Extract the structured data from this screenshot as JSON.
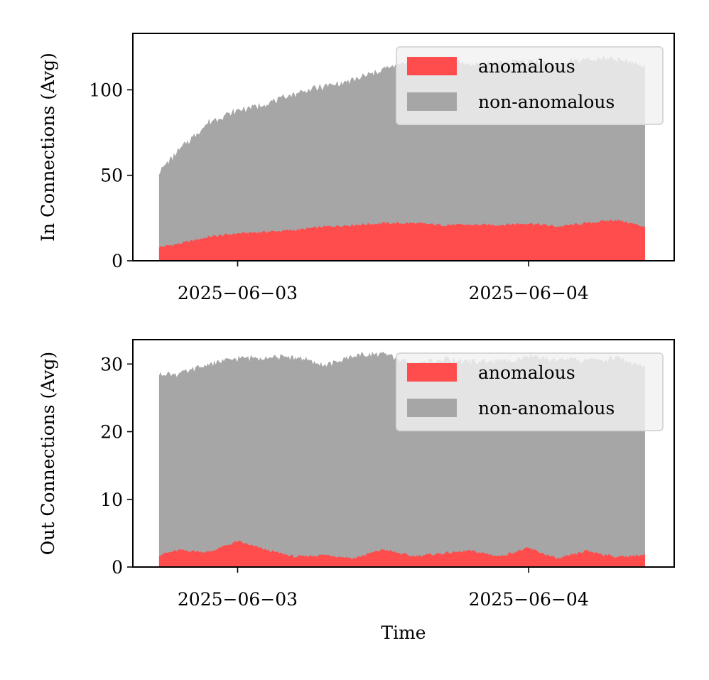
{
  "chart_data": [
    {
      "type": "area",
      "stacked": true,
      "ylabel": "In Connections (Avg)",
      "xlabel": "",
      "ylim": [
        0,
        133
      ],
      "yticks": [
        0,
        50,
        100
      ],
      "ytick_labels": [
        "0",
        "50",
        "100"
      ],
      "xlim": [
        -0.36,
        1.5
      ],
      "xticks": [
        0,
        1
      ],
      "xtick_labels": [
        "2025−06−03",
        "2025−06−04"
      ],
      "x_range": [
        -0.27,
        1.4
      ],
      "legend_position": "top-right",
      "series": [
        {
          "name": "anomalous",
          "color": "#ff4c4c",
          "x": [
            -0.27,
            -0.2,
            -0.1,
            0.0,
            0.1,
            0.2,
            0.3,
            0.4,
            0.5,
            0.6,
            0.7,
            0.8,
            0.9,
            1.0,
            1.1,
            1.2,
            1.3,
            1.4
          ],
          "values": [
            8,
            10,
            14,
            16,
            17,
            18,
            20,
            21,
            22,
            22,
            21,
            21,
            21,
            22,
            20,
            22,
            24,
            20
          ]
        },
        {
          "name": "non-anomalous",
          "color": "#a6a6a6",
          "x": [
            -0.27,
            -0.2,
            -0.1,
            0.0,
            0.1,
            0.2,
            0.3,
            0.4,
            0.5,
            0.6,
            0.7,
            0.8,
            0.9,
            1.0,
            1.1,
            1.2,
            1.3,
            1.4
          ],
          "values": [
            44,
            55,
            67,
            72,
            75,
            80,
            82,
            85,
            90,
            95,
            95,
            94,
            95,
            95,
            95,
            96,
            94,
            94
          ]
        }
      ]
    },
    {
      "type": "area",
      "stacked": true,
      "ylabel": "Out Connections (Avg)",
      "xlabel": "Time",
      "ylim": [
        0,
        33.6
      ],
      "yticks": [
        0,
        10,
        20,
        30
      ],
      "ytick_labels": [
        "0",
        "10",
        "20",
        "30"
      ],
      "xlim": [
        -0.36,
        1.5
      ],
      "xticks": [
        0,
        1
      ],
      "xtick_labels": [
        "2025−06−03",
        "2025−06−04"
      ],
      "x_range": [
        -0.27,
        1.4
      ],
      "legend_position": "top-right",
      "series": [
        {
          "name": "anomalous",
          "color": "#ff4c4c",
          "x": [
            -0.27,
            -0.2,
            -0.1,
            0.0,
            0.1,
            0.2,
            0.3,
            0.4,
            0.5,
            0.6,
            0.7,
            0.8,
            0.9,
            1.0,
            1.1,
            1.2,
            1.3,
            1.4
          ],
          "values": [
            1.8,
            2.5,
            2.2,
            3.8,
            2.5,
            1.5,
            1.8,
            1.3,
            2.6,
            1.6,
            2.0,
            2.4,
            1.6,
            2.8,
            1.2,
            2.4,
            1.5,
            1.8
          ]
        },
        {
          "name": "non-anomalous",
          "color": "#a6a6a6",
          "x": [
            -0.27,
            -0.2,
            -0.1,
            0.0,
            0.1,
            0.2,
            0.3,
            0.4,
            0.5,
            0.6,
            0.7,
            0.8,
            0.9,
            1.0,
            1.1,
            1.2,
            1.3,
            1.4
          ],
          "values": [
            26.8,
            26.0,
            27.8,
            27.0,
            28.5,
            29.5,
            28.0,
            30.0,
            28.9,
            28.4,
            28.7,
            27.9,
            28.9,
            28.2,
            29.4,
            28.1,
            29.5,
            27.8
          ]
        }
      ]
    }
  ]
}
